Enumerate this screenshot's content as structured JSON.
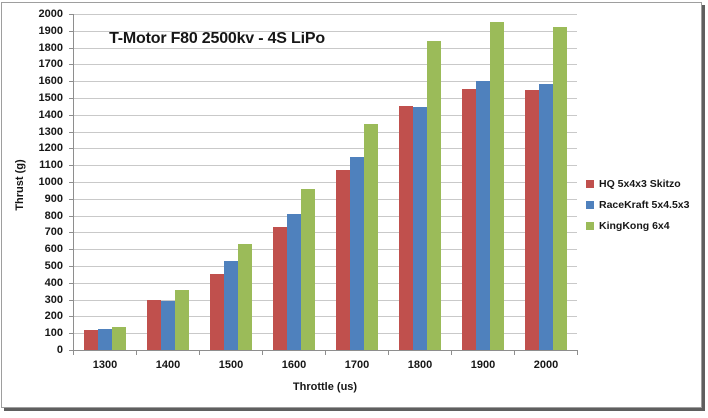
{
  "chart_data": {
    "type": "bar",
    "title": "T-Motor F80 2500kv - 4S LiPo",
    "xlabel": "Throttle (us)",
    "ylabel": "Thrust (g)",
    "categories": [
      "1300",
      "1400",
      "1500",
      "1600",
      "1700",
      "1800",
      "1900",
      "2000"
    ],
    "series": [
      {
        "name": "HQ 5x4x3 Skitzo",
        "color": "#C0504D",
        "values": [
          120,
          300,
          450,
          730,
          1070,
          1455,
          1555,
          1550
        ]
      },
      {
        "name": "RaceKraft 5x4.5x3",
        "color": "#4F81BD",
        "values": [
          125,
          290,
          530,
          810,
          1150,
          1445,
          1600,
          1585
        ]
      },
      {
        "name": "KingKong 6x4",
        "color": "#9BBB59",
        "values": [
          135,
          360,
          630,
          960,
          1345,
          1840,
          1950,
          1920
        ]
      }
    ],
    "ylim": [
      0,
      2000
    ],
    "ytick_step": 100,
    "yticks": [
      0,
      100,
      200,
      300,
      400,
      500,
      600,
      700,
      800,
      900,
      1000,
      1100,
      1200,
      1300,
      1400,
      1500,
      1600,
      1700,
      1800,
      1900,
      2000
    ],
    "grid": true,
    "legend_position": "right"
  },
  "colors": {
    "gridline": "#c9c9c9",
    "axis": "#8e8e8e",
    "text": "#161616",
    "frame_border": "#9e9e9e",
    "frame_shadow": "#5f5f5f"
  }
}
